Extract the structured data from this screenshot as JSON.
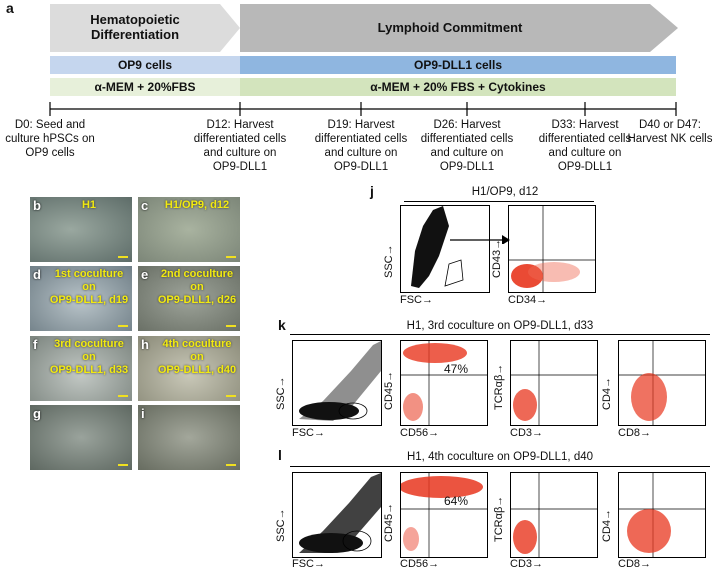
{
  "panel_labels": {
    "a": "a",
    "b": "b",
    "c": "c",
    "d": "d",
    "e": "e",
    "f": "f",
    "g": "g",
    "h": "h",
    "i": "i",
    "j": "j",
    "k": "k",
    "l": "l"
  },
  "schematic": {
    "stage1": "Hematopoietic\nDifferentiation",
    "stage2": "Lymphoid Commitment",
    "stage1_color": "#dcdcdc",
    "stage2_color": "#b8b8b8",
    "feeder1": "OP9 cells",
    "feeder2": "OP9-DLL1 cells",
    "feeder1_color": "#c5d6ee",
    "feeder2_color": "#8fb6e0",
    "medium1": "α-MEM + 20%FBS",
    "medium2": "α-MEM + 20% FBS + Cytokines",
    "medium1_color": "#e7f0da",
    "medium2_color": "#d3e4bd",
    "timeline": [
      "D0: Seed and\nculture hPSCs on\nOP9 cells",
      "D12: Harvest\ndifferentiated cells\nand culture on\nOP9-DLL1",
      "D19: Harvest\ndifferentiated cells\nand culture on\nOP9-DLL1",
      "D26: Harvest\ndifferentiated cells\nand culture on\nOP9-DLL1",
      "D33: Harvest\ndifferentiated cells\nand culture on\nOP9-DLL1",
      "D40 or D47:\nHarvest NK cells"
    ]
  },
  "micrographs": {
    "b": "H1",
    "c": "H1/OP9, d12",
    "d": "1st coculture on\nOP9-DLL1, d19",
    "e": "2nd coculture on\nOP9-DLL1, d26",
    "f": "3rd coculture on\nOP9-DLL1, d33",
    "h": "4th coculture on\nOP9-DLL1, d40",
    "g": "",
    "i": ""
  },
  "flow": {
    "j": {
      "title": "H1/OP9, d12",
      "p1_x": "FSC→",
      "p1_y": "SSC→",
      "p2_x": "CD34→",
      "p2_y": "CD43→"
    },
    "k": {
      "title": "H1, 3rd coculture on OP9-DLL1, d33",
      "pct": "47%",
      "p1_x": "FSC→",
      "p1_y": "SSC→",
      "p2_x": "CD56→",
      "p2_y": "CD45→",
      "p3_x": "CD3→",
      "p3_y": "TCRαβ→",
      "p4_x": "CD8→",
      "p4_y": "CD4→"
    },
    "l": {
      "title": "H1, 4th coculture on OP9-DLL1, d40",
      "pct": "64%",
      "p1_x": "FSC→",
      "p1_y": "SSC→",
      "p2_x": "CD56→",
      "p2_y": "CD45→",
      "p3_x": "CD3→",
      "p3_y": "TCRαβ→",
      "p4_x": "CD8→",
      "p4_y": "CD4→"
    }
  }
}
